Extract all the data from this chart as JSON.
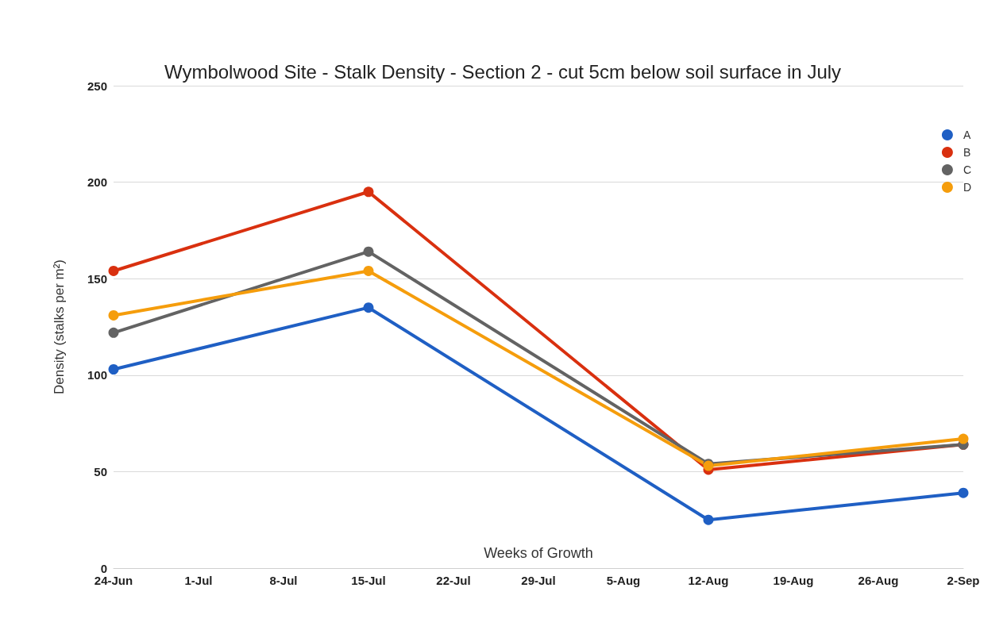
{
  "chart_data": {
    "type": "line",
    "title": "Wymbolwood Site - Stalk Density - Section 2 - cut 5cm below soil surface in July",
    "xlabel": "Weeks of Growth",
    "ylabel": "Density (stalks per m²)",
    "x": [
      "--06-24",
      "--07-15",
      "--08-12",
      "--09-02"
    ],
    "series": [
      {
        "name": "A",
        "color": "#1f5fc4",
        "values": [
          103,
          135,
          25,
          39
        ]
      },
      {
        "name": "B",
        "color": "#d9300f",
        "values": [
          154,
          195,
          51,
          64
        ]
      },
      {
        "name": "C",
        "color": "#636363",
        "values": [
          122,
          164,
          54,
          64
        ]
      },
      {
        "name": "D",
        "color": "#f59d0c",
        "values": [
          131,
          154,
          53,
          67
        ]
      }
    ],
    "xlim": [
      "--06-24",
      "--09-02"
    ],
    "xticks": [
      {
        "value": "--06-24",
        "label": "24-Jun"
      },
      {
        "value": "--07-01",
        "label": "1-Jul"
      },
      {
        "value": "--07-08",
        "label": "8-Jul"
      },
      {
        "value": "--07-15",
        "label": "15-Jul"
      },
      {
        "value": "--07-22",
        "label": "22-Jul"
      },
      {
        "value": "--07-29",
        "label": "29-Jul"
      },
      {
        "value": "--08-05",
        "label": "5-Aug"
      },
      {
        "value": "--08-12",
        "label": "12-Aug"
      },
      {
        "value": "--08-19",
        "label": "19-Aug"
      },
      {
        "value": "--08-26",
        "label": "26-Aug"
      },
      {
        "value": "--09-02",
        "label": "2-Sep"
      }
    ],
    "ylim": [
      0,
      250
    ],
    "yticks": [
      0,
      50,
      100,
      150,
      200,
      250
    ],
    "grid": "y",
    "legend": "top right",
    "marker": "circle",
    "line_style": "solid"
  }
}
